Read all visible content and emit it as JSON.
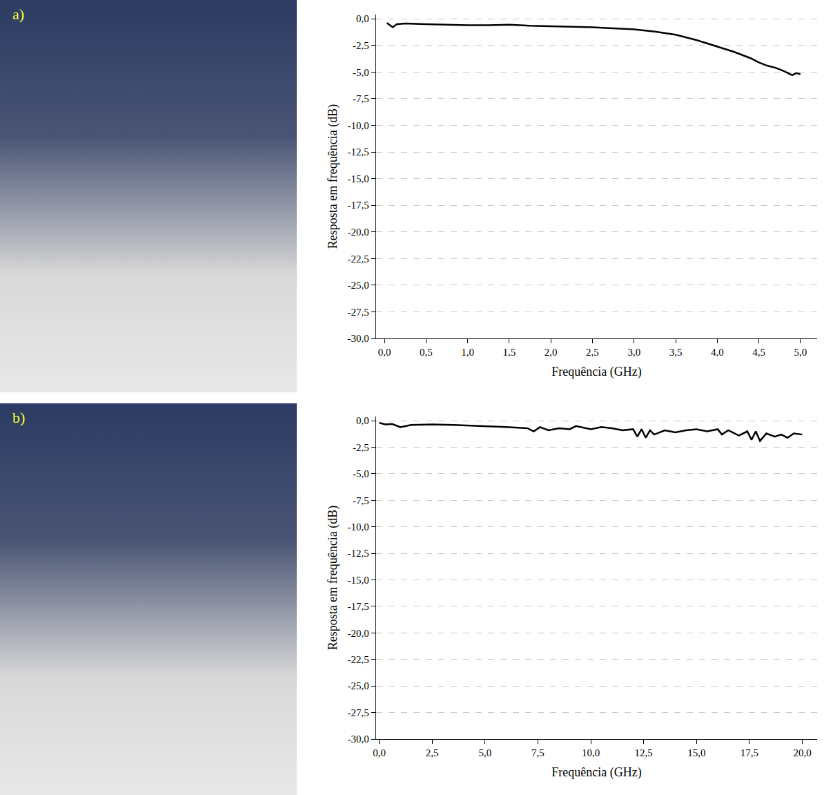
{
  "panel_labels": [
    "a)",
    "b)"
  ],
  "chart_data": [
    {
      "type": "line",
      "x_label": "Frequência (GHz)",
      "y_label": "Resposta em frequência (dB)",
      "color": "#000000",
      "grid": true,
      "xlim": [
        -0.1,
        5.2
      ],
      "xticks": [
        {
          "value": 0,
          "label": "0,0"
        },
        {
          "value": 0.5,
          "label": "0,5"
        },
        {
          "value": 1,
          "label": "1,0"
        },
        {
          "value": 1.5,
          "label": "1,5"
        },
        {
          "value": 2,
          "label": "2,0"
        },
        {
          "value": 2.5,
          "label": "2,5"
        },
        {
          "value": 3,
          "label": "3,0"
        },
        {
          "value": 3.5,
          "label": "3,5"
        },
        {
          "value": 4,
          "label": "4,0"
        },
        {
          "value": 4.5,
          "label": "4,5"
        },
        {
          "value": 5,
          "label": "5,0"
        }
      ],
      "ylim": [
        -30,
        0.4
      ],
      "yticks": [
        {
          "value": 0,
          "label": "0,0"
        },
        {
          "value": -2.5,
          "label": "-2,5"
        },
        {
          "value": -5,
          "label": "-5,0"
        },
        {
          "value": -7.5,
          "label": "-7,5"
        },
        {
          "value": -10,
          "label": "-10,0"
        },
        {
          "value": -12.5,
          "label": "-12,5"
        },
        {
          "value": -15,
          "label": "-15,0"
        },
        {
          "value": -17.5,
          "label": "-17,5"
        },
        {
          "value": -20,
          "label": "-20,0"
        },
        {
          "value": -22.5,
          "label": "-22,5"
        },
        {
          "value": -25,
          "label": "-25,0"
        },
        {
          "value": -27.5,
          "label": "-27,5"
        },
        {
          "value": -30,
          "label": "-30,0"
        }
      ],
      "x": [
        0.03,
        0.1,
        0.15,
        0.25,
        0.5,
        0.75,
        1.0,
        1.25,
        1.5,
        1.75,
        2.0,
        2.25,
        2.5,
        2.75,
        3.0,
        3.25,
        3.5,
        3.75,
        4.0,
        4.2,
        4.4,
        4.5,
        4.6,
        4.7,
        4.8,
        4.9,
        4.95,
        5.0
      ],
      "values": [
        -0.4,
        -0.8,
        -0.5,
        -0.45,
        -0.5,
        -0.55,
        -0.6,
        -0.6,
        -0.55,
        -0.65,
        -0.7,
        -0.75,
        -0.8,
        -0.9,
        -1.0,
        -1.2,
        -1.5,
        -2.0,
        -2.6,
        -3.1,
        -3.7,
        -4.1,
        -4.4,
        -4.6,
        -4.9,
        -5.3,
        -5.1,
        -5.2
      ]
    },
    {
      "type": "line",
      "x_label": "Frequência (GHz)",
      "y_label": "Resposta em frequência (dB)",
      "color": "#000000",
      "grid": true,
      "xlim": [
        -0.15,
        20.7
      ],
      "xticks": [
        {
          "value": 0,
          "label": "0,0"
        },
        {
          "value": 2.5,
          "label": "2,5"
        },
        {
          "value": 5,
          "label": "5,0"
        },
        {
          "value": 7.5,
          "label": "7,5"
        },
        {
          "value": 10,
          "label": "10,0"
        },
        {
          "value": 12.5,
          "label": "12,5"
        },
        {
          "value": 15,
          "label": "15,0"
        },
        {
          "value": 17.5,
          "label": "17,5"
        },
        {
          "value": 20,
          "label": "20,0"
        }
      ],
      "ylim": [
        -30,
        0.4
      ],
      "yticks": [
        {
          "value": 0,
          "label": "0,0"
        },
        {
          "value": -2.5,
          "label": "-2,5"
        },
        {
          "value": -5,
          "label": "-5,0"
        },
        {
          "value": -7.5,
          "label": "-7,5"
        },
        {
          "value": -10,
          "label": "-10,0"
        },
        {
          "value": -12.5,
          "label": "-12,5"
        },
        {
          "value": -15,
          "label": "-15,0"
        },
        {
          "value": -17.5,
          "label": "-17,5"
        },
        {
          "value": -20,
          "label": "-20,0"
        },
        {
          "value": -22.5,
          "label": "-22,5"
        },
        {
          "value": -25,
          "label": "-25,0"
        },
        {
          "value": -27.5,
          "label": "-27,5"
        },
        {
          "value": -30,
          "label": "-30,0"
        }
      ],
      "x": [
        0,
        0.3,
        0.6,
        1.0,
        1.5,
        2.5,
        3.5,
        5,
        6,
        7,
        7.3,
        7.6,
        8,
        8.5,
        9,
        9.3,
        10,
        10.5,
        11,
        11.5,
        12,
        12.2,
        12.4,
        12.6,
        12.8,
        13,
        13.5,
        14,
        14.5,
        15,
        15.5,
        16,
        16.2,
        16.5,
        17,
        17.4,
        17.6,
        17.8,
        18,
        18.3,
        18.7,
        19,
        19.3,
        19.6,
        20
      ],
      "values": [
        -0.2,
        -0.35,
        -0.3,
        -0.6,
        -0.4,
        -0.35,
        -0.4,
        -0.5,
        -0.6,
        -0.7,
        -1.0,
        -0.6,
        -0.9,
        -0.7,
        -0.8,
        -0.5,
        -0.8,
        -0.6,
        -0.7,
        -0.9,
        -0.8,
        -1.5,
        -0.8,
        -1.6,
        -0.9,
        -1.3,
        -0.9,
        -1.1,
        -0.9,
        -0.8,
        -1.0,
        -0.8,
        -1.3,
        -0.9,
        -1.4,
        -1.0,
        -1.8,
        -1.0,
        -1.9,
        -1.2,
        -1.5,
        -1.3,
        -1.6,
        -1.2,
        -1.3
      ]
    }
  ]
}
